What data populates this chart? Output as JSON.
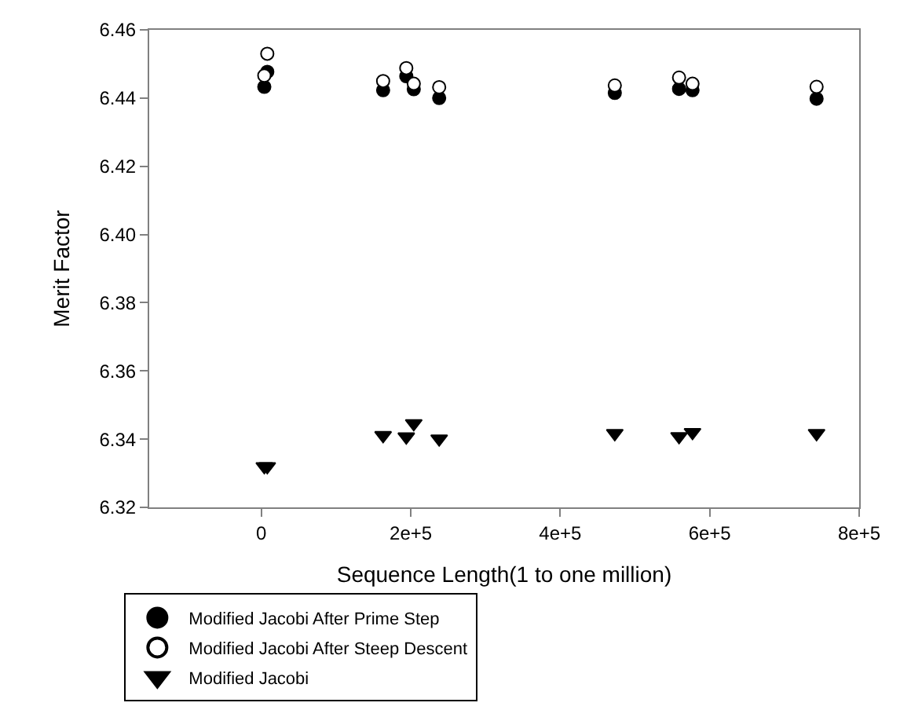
{
  "chart_data": {
    "type": "scatter",
    "xlabel": "Sequence Length(1 to one million)",
    "ylabel": "Merit Factor",
    "x": [
      4000,
      8000,
      163000,
      194000,
      204000,
      238000,
      473000,
      559000,
      577000,
      743000
    ],
    "series": [
      {
        "name": "Modified Jacobi After Prime Step",
        "color": "#000000",
        "marker": "circle",
        "values": [
          6.4433,
          6.4477,
          6.4423,
          6.4464,
          6.4426,
          6.44,
          6.4415,
          6.4427,
          6.4423,
          6.4398
        ]
      },
      {
        "name": "Modified Jacobi After Steep Descent",
        "color": "#ffffff",
        "marker": "circle",
        "values": [
          6.4466,
          6.453,
          6.445,
          6.4488,
          6.4442,
          6.4432,
          6.4437,
          6.446,
          6.4442,
          6.4433
        ]
      },
      {
        "name": "Modified Jacobi",
        "color": "#000000",
        "marker": "triangle",
        "values": [
          6.332,
          6.332,
          6.3411,
          6.3407,
          6.3446,
          6.3401,
          6.3417,
          6.3408,
          6.342,
          6.3417
        ]
      }
    ],
    "xlim": [
      -150000,
      800000
    ],
    "xticks": [
      {
        "value": 0,
        "label": "0"
      },
      {
        "value": 200000,
        "label": "2e+5"
      },
      {
        "value": 400000,
        "label": "4e+5"
      },
      {
        "value": 600000,
        "label": "6e+5"
      },
      {
        "value": 800000,
        "label": "8e+5"
      }
    ],
    "ylim": [
      6.32,
      6.46
    ],
    "yticks": [
      {
        "value": 6.32,
        "label": "6.32"
      },
      {
        "value": 6.34,
        "label": "6.34"
      },
      {
        "value": 6.36,
        "label": "6.36"
      },
      {
        "value": 6.38,
        "label": "6.38"
      },
      {
        "value": 6.4,
        "label": "6.40"
      },
      {
        "value": 6.42,
        "label": "6.42"
      },
      {
        "value": 6.44,
        "label": "6.44"
      },
      {
        "value": 6.46,
        "label": "6.46"
      }
    ],
    "legend": "bottom left"
  }
}
